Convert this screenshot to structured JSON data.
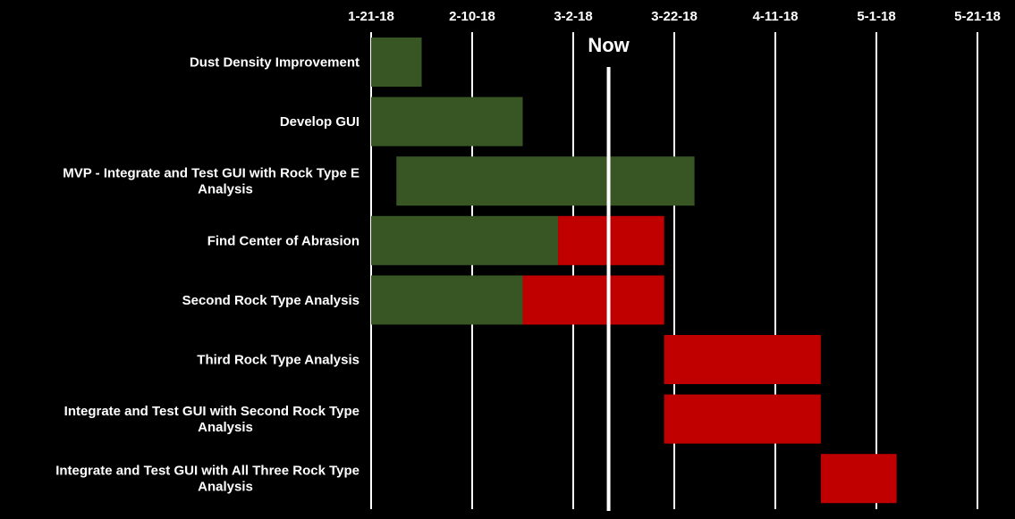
{
  "chart_data": {
    "type": "gantt",
    "title": "",
    "x_ticks": [
      "1-21-18",
      "2-10-18",
      "3-2-18",
      "3-22-18",
      "4-11-18",
      "5-1-18",
      "5-21-18"
    ],
    "xlim": [
      "2018-01-21",
      "2018-05-21"
    ],
    "now_date": "2018-03-09",
    "now_label": "Now",
    "legend": "none",
    "colors": {
      "background": "#000000",
      "completed": "#375623",
      "remaining": "#c00000",
      "grid": "#ffffff",
      "text": "#ffffff"
    },
    "tasks": [
      {
        "name": "Dust Density Improvement",
        "segments": [
          {
            "status": "completed",
            "start": "2018-01-21",
            "end": "2018-01-31"
          }
        ]
      },
      {
        "name": "Develop GUI",
        "segments": [
          {
            "status": "completed",
            "start": "2018-01-21",
            "end": "2018-02-20"
          }
        ]
      },
      {
        "name": "MVP - Integrate and Test GUI with Rock Type E Analysis",
        "segments": [
          {
            "status": "completed",
            "start": "2018-01-26",
            "end": "2018-03-26"
          }
        ]
      },
      {
        "name": "Find Center of Abrasion",
        "segments": [
          {
            "status": "completed",
            "start": "2018-01-21",
            "end": "2018-02-27"
          },
          {
            "status": "remaining",
            "start": "2018-02-27",
            "end": "2018-03-20"
          }
        ]
      },
      {
        "name": "Second Rock Type Analysis",
        "segments": [
          {
            "status": "completed",
            "start": "2018-01-21",
            "end": "2018-02-20"
          },
          {
            "status": "remaining",
            "start": "2018-02-20",
            "end": "2018-03-20"
          }
        ]
      },
      {
        "name": "Third Rock Type Analysis",
        "segments": [
          {
            "status": "remaining",
            "start": "2018-03-20",
            "end": "2018-04-20"
          }
        ]
      },
      {
        "name": "Integrate and Test GUI with Second Rock Type Analysis",
        "segments": [
          {
            "status": "remaining",
            "start": "2018-03-20",
            "end": "2018-04-20"
          }
        ]
      },
      {
        "name": "Integrate and Test GUI with All Three Rock Type Analysis",
        "segments": [
          {
            "status": "remaining",
            "start": "2018-04-20",
            "end": "2018-05-05"
          }
        ]
      }
    ]
  }
}
